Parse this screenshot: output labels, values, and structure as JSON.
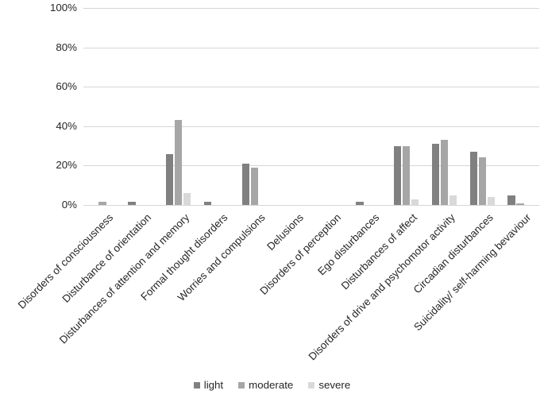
{
  "chart_data": {
    "type": "bar",
    "title": "",
    "xlabel": "",
    "ylabel": "",
    "ylim": [
      0,
      100
    ],
    "grid": true,
    "legend_position": "bottom",
    "y_ticks": [
      "0%",
      "20%",
      "40%",
      "60%",
      "80%",
      "100%"
    ],
    "categories": [
      "Disorders of consciousness",
      "Disturbance of orientation",
      "Disturbances of attention and memory",
      "Formal thought disorders",
      "Worries and compulsions",
      "Delusions",
      "Disorders of perception",
      "Ego disturbances",
      "Disturbances of affect",
      "Disorders of drive and psychomotor activity",
      "Circadian disturbances",
      "Suicidality/ self-harming bevaviour"
    ],
    "series": [
      {
        "name": "light",
        "color": "#808080",
        "values": [
          0,
          1.5,
          26,
          1.5,
          21,
          0,
          0,
          1.5,
          30,
          31,
          27,
          5
        ]
      },
      {
        "name": "moderate",
        "color": "#a6a6a6",
        "values": [
          1.5,
          0,
          43,
          0,
          19,
          0,
          0,
          0,
          30,
          33,
          24,
          1
        ]
      },
      {
        "name": "severe",
        "color": "#d9d9d9",
        "values": [
          0,
          0,
          6,
          0,
          0,
          0,
          0,
          0,
          3,
          5,
          4,
          0
        ]
      }
    ]
  },
  "colors": {
    "background": "#ffffff",
    "gridline": "#d6d6d6",
    "text": "#262626"
  },
  "layout_values": {
    "y_tick_step_percent": 20
  }
}
